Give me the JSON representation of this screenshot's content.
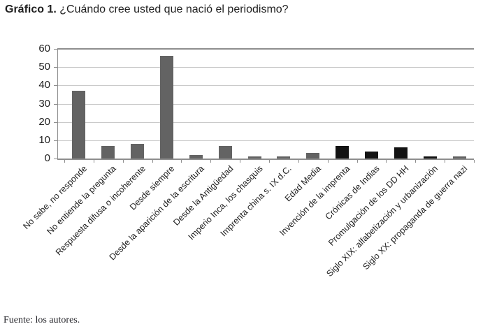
{
  "page": {
    "title_prefix": "Gráfico 1.",
    "title_text": " ¿Cuándo cree usted que nació el periodismo?",
    "source_note": "Fuente: los autores."
  },
  "colors": {
    "bar_gray": "#636363",
    "bar_black": "#131313",
    "grid": "#c9c9c9",
    "grid_top": "#8e8e8e",
    "axis": "#8e8e8e",
    "text": "#1f1f1f"
  },
  "chart_data": {
    "type": "bar",
    "title": "Gráfico 1. ¿Cuándo cree usted que nació el periodismo?",
    "categories": [
      "No sabe, no responde",
      "No entiende la pregunta",
      "Respuesta difusa o incoherente",
      "Desde siempre",
      "Desde la aparición de la escritura",
      "Desde la Antigüedad",
      "Imperio Inca, los chasquis",
      "Imprenta china s. IX d.C.",
      "Edad Media",
      "Invención de la imprenta",
      "Crónicas de Indias",
      "Promulgación de los DD HH",
      "Siglo XIX: alfabetización y urbanización",
      "Siglo XX: propaganda de guerra nazi"
    ],
    "values": [
      37,
      7,
      8,
      56,
      2,
      7,
      1,
      1,
      3,
      7,
      4,
      6,
      1,
      1
    ],
    "bar_colors": [
      "gray",
      "gray",
      "gray",
      "gray",
      "gray",
      "gray",
      "gray",
      "gray",
      "gray",
      "black",
      "black",
      "black",
      "black",
      "gray"
    ],
    "ylim": [
      0,
      60
    ],
    "yticks": [
      0,
      10,
      20,
      30,
      40,
      50,
      60
    ],
    "xlabel": "",
    "ylabel": "",
    "grid": true,
    "legend": false,
    "x_tick_rotation": 45,
    "source": "Fuente: los autores."
  }
}
